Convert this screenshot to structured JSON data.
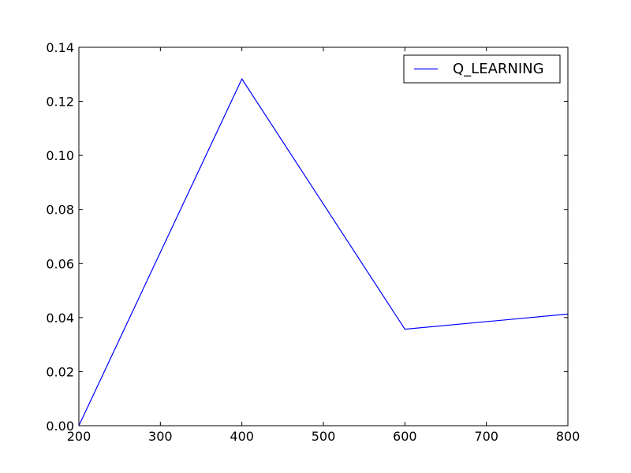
{
  "chart_data": {
    "type": "line",
    "title": "",
    "xlabel": "",
    "ylabel": "",
    "xlim": [
      200,
      800
    ],
    "ylim": [
      0,
      0.14
    ],
    "x_ticks": [
      200,
      300,
      400,
      500,
      600,
      700,
      800
    ],
    "y_ticks": [
      0,
      0.02,
      0.04,
      0.06,
      0.08,
      0.1,
      0.12,
      0.14
    ],
    "x_tick_labels": [
      "200",
      "300",
      "400",
      "500",
      "600",
      "700",
      "800"
    ],
    "y_tick_labels": [
      "0.00",
      "0.02",
      "0.04",
      "0.06",
      "0.08",
      "0.10",
      "0.12",
      "0.14"
    ],
    "grid": false,
    "legend_position": "top-right",
    "series": [
      {
        "name": "Q_LEARNING",
        "color": "#0000ff",
        "x": [
          200,
          400,
          600,
          800
        ],
        "y": [
          0.0,
          0.1283,
          0.0357,
          0.0413
        ]
      }
    ]
  }
}
